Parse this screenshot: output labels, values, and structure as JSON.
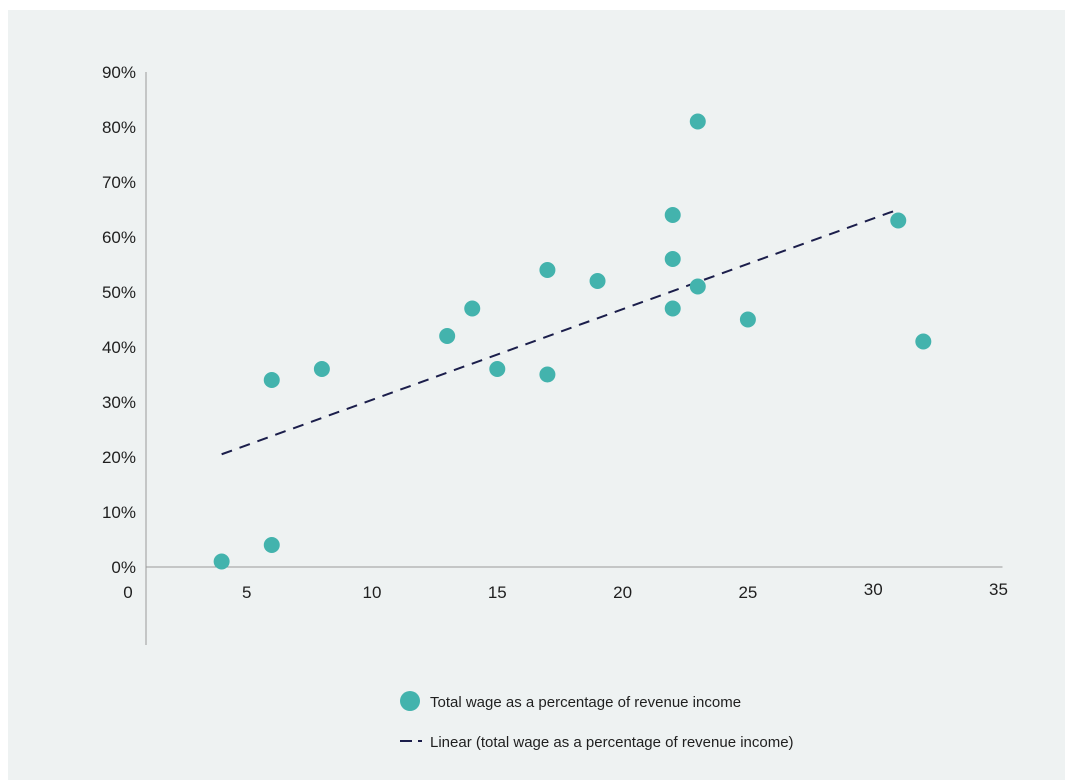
{
  "chart_data": {
    "type": "scatter",
    "title": "",
    "xlabel": "",
    "ylabel": "",
    "xlim": [
      0,
      35
    ],
    "ylim": [
      0,
      90
    ],
    "x_ticks": [
      {
        "value": 0,
        "label": "0"
      },
      {
        "value": 5,
        "label": "5"
      },
      {
        "value": 10,
        "label": "10"
      },
      {
        "value": 15,
        "label": "15"
      },
      {
        "value": 20,
        "label": "20"
      },
      {
        "value": 25,
        "label": "25"
      },
      {
        "value": 30,
        "label": "30"
      },
      {
        "value": 35,
        "label": "35"
      }
    ],
    "y_ticks": [
      {
        "value": 0,
        "label": "0%"
      },
      {
        "value": 10,
        "label": "10%"
      },
      {
        "value": 20,
        "label": "20%"
      },
      {
        "value": 30,
        "label": "30%"
      },
      {
        "value": 40,
        "label": "40%"
      },
      {
        "value": 50,
        "label": "50%"
      },
      {
        "value": 60,
        "label": "60%"
      },
      {
        "value": 70,
        "label": "70%"
      },
      {
        "value": 80,
        "label": "80%"
      },
      {
        "value": 90,
        "label": "90%"
      }
    ],
    "grid": false,
    "legend_position": "bottom",
    "series": [
      {
        "name": "Total wage as a percentage of revenue income",
        "kind": "scatter",
        "color": "#43b3ad",
        "points": [
          {
            "x": 4,
            "y": 1
          },
          {
            "x": 6,
            "y": 4
          },
          {
            "x": 6,
            "y": 34
          },
          {
            "x": 8,
            "y": 36
          },
          {
            "x": 13,
            "y": 42
          },
          {
            "x": 14,
            "y": 47
          },
          {
            "x": 15,
            "y": 36
          },
          {
            "x": 17,
            "y": 54
          },
          {
            "x": 17,
            "y": 35
          },
          {
            "x": 19,
            "y": 52
          },
          {
            "x": 22,
            "y": 64
          },
          {
            "x": 22,
            "y": 56
          },
          {
            "x": 22,
            "y": 47
          },
          {
            "x": 23,
            "y": 81
          },
          {
            "x": 23,
            "y": 51
          },
          {
            "x": 25,
            "y": 45
          },
          {
            "x": 31,
            "y": 63
          },
          {
            "x": 32,
            "y": 41
          }
        ]
      },
      {
        "name": "Linear (total wage as a percentage of revenue income)",
        "kind": "trendline",
        "color": "#1b1e4b",
        "dash": "dashed",
        "points": [
          {
            "x": 4,
            "y": 20.5
          },
          {
            "x": 31,
            "y": 65
          }
        ]
      }
    ]
  }
}
